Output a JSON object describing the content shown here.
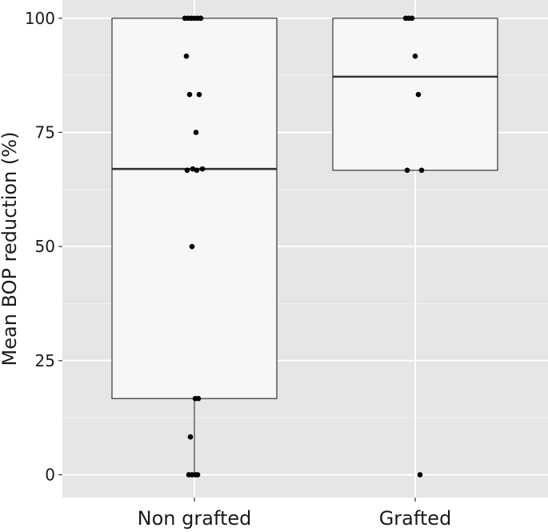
{
  "chart_data": {
    "type": "box",
    "title": "",
    "xlabel": "",
    "ylabel": "Mean BOP reduction (%)",
    "ylim": [
      -5,
      104
    ],
    "yticks": [
      0,
      25,
      50,
      75,
      100
    ],
    "grid": true,
    "legend": "none",
    "categories": [
      "Non grafted",
      "Grafted"
    ],
    "boxes": [
      {
        "category": "Non grafted",
        "q1": 16.7,
        "median": 67,
        "q3": 100,
        "whisker_low": 0,
        "whisker_high": 100
      },
      {
        "category": "Grafted",
        "q1": 66.7,
        "median": 87.2,
        "q3": 100,
        "whisker_low": 66.7,
        "whisker_high": 100
      }
    ],
    "points": [
      {
        "category": "Non grafted",
        "y": [
          100,
          100,
          100,
          100,
          100,
          100,
          91.7,
          83.3,
          83.3,
          75,
          67,
          67,
          66.7,
          66.7,
          50,
          16.7,
          16.7,
          8.3,
          0,
          0,
          0,
          0
        ]
      },
      {
        "category": "Grafted",
        "y": [
          100,
          100,
          100,
          91.7,
          83.3,
          66.7,
          66.7,
          0
        ]
      }
    ],
    "colors": {
      "panel_background": "#e5e5e5",
      "grid_major": "#ffffff",
      "grid_minor": "#f0f0f0",
      "box_fill": "#f7f7f7",
      "box_stroke": "#333333",
      "point": "#000000"
    }
  }
}
